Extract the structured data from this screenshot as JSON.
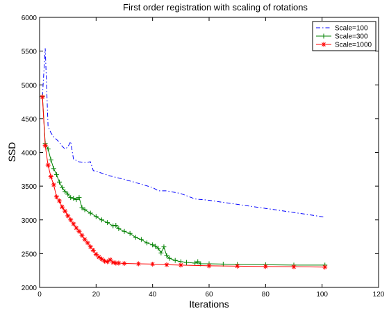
{
  "chart_data": {
    "type": "line",
    "title": "First order registration with scaling of rotations",
    "xlabel": "Iterations",
    "ylabel": "SSD",
    "xlim": [
      0,
      120
    ],
    "ylim": [
      2000,
      6000
    ],
    "xticks": [
      0,
      20,
      40,
      60,
      80,
      100,
      120
    ],
    "yticks": [
      2000,
      2500,
      3000,
      3500,
      4000,
      4500,
      5000,
      5500,
      6000
    ],
    "grid": false,
    "legend_position": "top-right",
    "series": [
      {
        "name": "Scale=100",
        "color": "#0000ff",
        "line_style": "dash-dot",
        "marker": "none",
        "x": [
          1,
          2,
          3,
          4,
          5,
          6,
          7,
          8,
          9,
          10,
          11,
          12,
          14,
          16,
          18,
          19,
          20,
          25,
          30,
          35,
          40,
          42,
          45,
          50,
          55,
          60,
          65,
          70,
          75,
          80,
          85,
          90,
          95,
          101
        ],
        "y": [
          4830,
          5540,
          4380,
          4290,
          4230,
          4190,
          4150,
          4090,
          4050,
          4080,
          4160,
          3900,
          3860,
          3850,
          3860,
          3730,
          3720,
          3650,
          3600,
          3540,
          3480,
          3430,
          3430,
          3390,
          3310,
          3290,
          3260,
          3230,
          3200,
          3170,
          3140,
          3110,
          3080,
          3040
        ]
      },
      {
        "name": "Scale=300",
        "color": "#008000",
        "line_style": "solid",
        "marker": "plus",
        "x": [
          1,
          2,
          3,
          4,
          5,
          6,
          7,
          8,
          9,
          10,
          11,
          12,
          13,
          14,
          15,
          16,
          18,
          20,
          22,
          24,
          26,
          27,
          28,
          30,
          32,
          34,
          36,
          38,
          40,
          41,
          42,
          43,
          44,
          45,
          46,
          48,
          50,
          52,
          55,
          56,
          57,
          60,
          65,
          70,
          80,
          90,
          101
        ],
        "y": [
          4830,
          4130,
          4050,
          3890,
          3760,
          3670,
          3560,
          3480,
          3420,
          3380,
          3330,
          3320,
          3300,
          3330,
          3180,
          3150,
          3100,
          3050,
          3000,
          2960,
          2910,
          2920,
          2870,
          2830,
          2800,
          2740,
          2710,
          2660,
          2630,
          2610,
          2580,
          2510,
          2600,
          2470,
          2430,
          2400,
          2380,
          2370,
          2360,
          2380,
          2350,
          2350,
          2345,
          2340,
          2335,
          2330,
          2330
        ]
      },
      {
        "name": "Scale=1000",
        "color": "#ff0000",
        "line_style": "solid",
        "marker": "asterisk",
        "x": [
          1,
          2,
          3,
          4,
          5,
          6,
          7,
          8,
          9,
          10,
          11,
          12,
          13,
          14,
          15,
          16,
          17,
          18,
          19,
          20,
          21,
          22,
          23,
          24,
          25,
          26,
          27,
          28,
          30,
          35,
          40,
          45,
          50,
          60,
          70,
          80,
          90,
          101
        ],
        "y": [
          4820,
          4100,
          3810,
          3640,
          3520,
          3340,
          3280,
          3190,
          3130,
          3060,
          3000,
          2940,
          2880,
          2830,
          2770,
          2710,
          2660,
          2600,
          2550,
          2490,
          2450,
          2420,
          2390,
          2380,
          2410,
          2370,
          2360,
          2360,
          2355,
          2350,
          2345,
          2335,
          2330,
          2320,
          2315,
          2310,
          2305,
          2300
        ]
      }
    ]
  }
}
